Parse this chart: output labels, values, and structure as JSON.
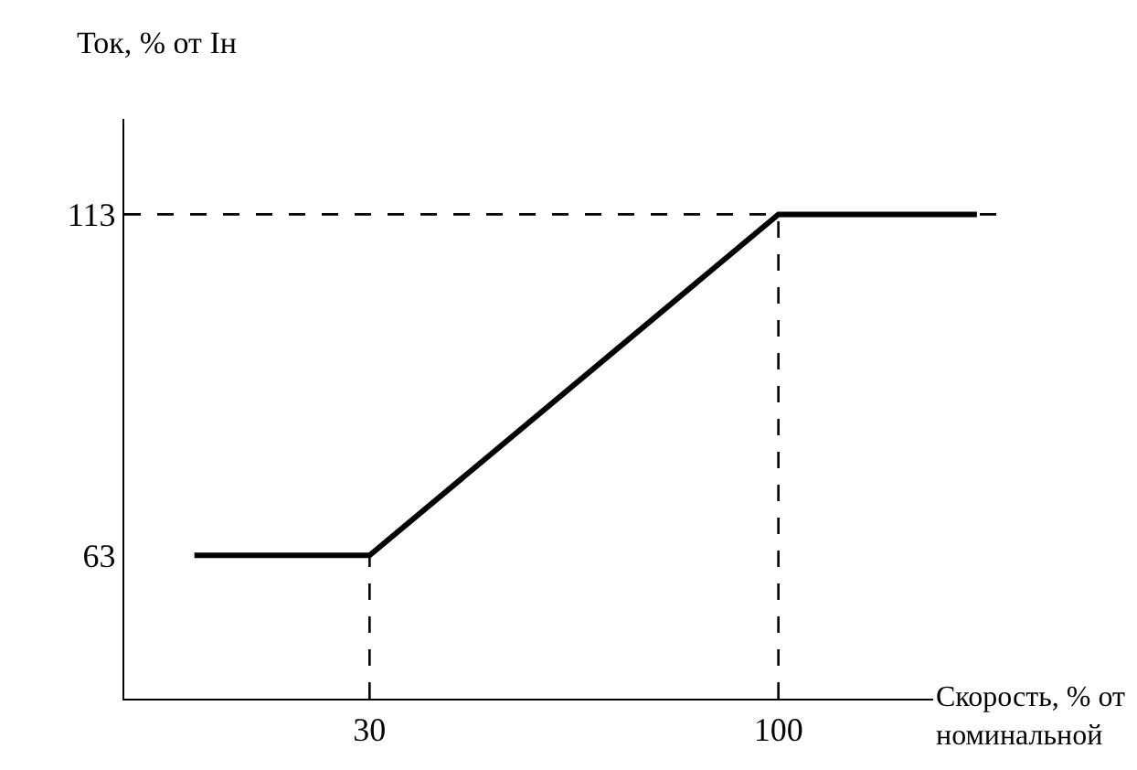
{
  "chart_data": {
    "type": "line",
    "xlabel": "Скорость, % от номинальной",
    "ylabel": "Ток, % от Iн",
    "x": [
      0,
      30,
      100,
      134
    ],
    "series": [
      {
        "color": "#000000",
        "values": [
          63,
          63,
          113,
          113
        ]
      }
    ],
    "xlim": [
      -12,
      142
    ],
    "ylim": [
      42,
      127
    ],
    "xticks": [
      30,
      100
    ],
    "yticks": [
      63,
      113
    ],
    "ref_lines": [
      {
        "axis": "y",
        "value": 113,
        "line_style": "dashed",
        "color": "#000000"
      },
      {
        "axis": "x",
        "value": 30,
        "line_style": "dashed",
        "color": "#000000"
      },
      {
        "axis": "x",
        "value": 100,
        "line_style": "dashed",
        "color": "#000000"
      }
    ],
    "grid": false,
    "marker": "none",
    "line_style": "solid"
  }
}
